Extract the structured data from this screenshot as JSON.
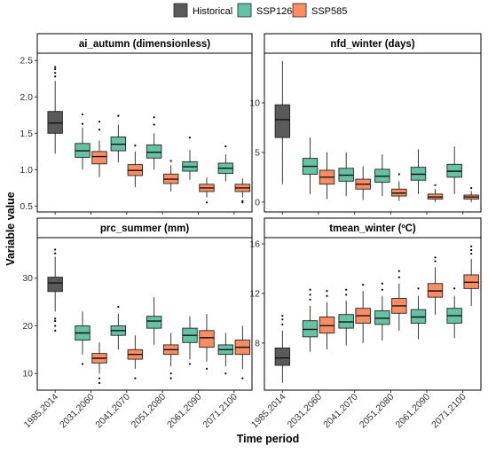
{
  "legend": {
    "items": [
      {
        "label": "Historical",
        "color": "#5a5a5a"
      },
      {
        "label": "SSP126",
        "color": "#66c2a5"
      },
      {
        "label": "SSP585",
        "color": "#fc8d62"
      }
    ]
  },
  "axes": {
    "xlabel": "Time period",
    "ylabel": "Variable value"
  },
  "chart_data": {
    "type": "boxplot",
    "layout": "2x2 facets",
    "x_categories": [
      "1985,2014",
      "2031,2060",
      "2041,2070",
      "2051,2080",
      "2061,2090",
      "2071,2100"
    ],
    "panels": [
      {
        "title": "ai_autumn (dimensionless)",
        "ylim": [
          0.42,
          2.6
        ],
        "yticks": [
          0.5,
          1.0,
          1.5,
          2.0,
          2.5
        ],
        "ytick_labels": [
          "0.5",
          "1.0",
          "1.5",
          "2.0",
          "2.5"
        ],
        "boxes": [
          {
            "period": "1985,2014",
            "scenario": "Historical",
            "min": 1.22,
            "q1": 1.5,
            "median": 1.64,
            "q3": 1.8,
            "max": 2.22,
            "outliers": [
              2.28,
              2.33,
              2.38,
              2.41
            ]
          },
          {
            "period": "2031,2060",
            "scenario": "SSP126",
            "min": 1.0,
            "q1": 1.17,
            "median": 1.26,
            "q3": 1.36,
            "max": 1.58,
            "outliers": [
              1.63,
              1.76
            ]
          },
          {
            "period": "2031,2060",
            "scenario": "SSP585",
            "min": 0.9,
            "q1": 1.08,
            "median": 1.18,
            "q3": 1.25,
            "max": 1.4,
            "outliers": [
              1.55,
              1.66
            ]
          },
          {
            "period": "2041,2070",
            "scenario": "SSP126",
            "min": 1.1,
            "q1": 1.26,
            "median": 1.35,
            "q3": 1.45,
            "max": 1.62,
            "outliers": [
              1.74
            ]
          },
          {
            "period": "2041,2070",
            "scenario": "SSP585",
            "min": 0.76,
            "q1": 0.92,
            "median": 0.99,
            "q3": 1.07,
            "max": 1.25,
            "outliers": [
              1.33
            ]
          },
          {
            "period": "2051,2080",
            "scenario": "SSP126",
            "min": 1.0,
            "q1": 1.16,
            "median": 1.24,
            "q3": 1.34,
            "max": 1.5,
            "outliers": [
              1.62,
              1.72
            ]
          },
          {
            "period": "2051,2080",
            "scenario": "SSP585",
            "min": 0.7,
            "q1": 0.81,
            "median": 0.87,
            "q3": 0.94,
            "max": 1.06,
            "outliers": [
              1.12
            ]
          },
          {
            "period": "2061,2090",
            "scenario": "SSP126",
            "min": 0.86,
            "q1": 0.98,
            "median": 1.04,
            "q3": 1.11,
            "max": 1.27,
            "outliers": [
              1.44
            ]
          },
          {
            "period": "2061,2090",
            "scenario": "SSP585",
            "min": 0.62,
            "q1": 0.7,
            "median": 0.75,
            "q3": 0.8,
            "max": 0.89,
            "outliers": [
              0.55
            ]
          },
          {
            "period": "2071,2100",
            "scenario": "SSP126",
            "min": 0.84,
            "q1": 0.95,
            "median": 1.02,
            "q3": 1.09,
            "max": 1.21,
            "outliers": [
              1.32
            ]
          },
          {
            "period": "2071,2100",
            "scenario": "SSP585",
            "min": 0.62,
            "q1": 0.7,
            "median": 0.75,
            "q3": 0.8,
            "max": 0.88,
            "outliers": [
              0.55,
              0.57
            ]
          }
        ]
      },
      {
        "title": "nfd_winter (days)",
        "ylim": [
          -1.0,
          15.0
        ],
        "yticks": [
          0,
          5,
          10
        ],
        "ytick_labels": [
          "0",
          "5",
          "10"
        ],
        "boxes": [
          {
            "period": "1985,2014",
            "scenario": "Historical",
            "min": 1.8,
            "q1": 6.5,
            "median": 8.3,
            "q3": 9.8,
            "max": 14.2,
            "outliers": []
          },
          {
            "period": "2031,2060",
            "scenario": "SSP126",
            "min": 0.8,
            "q1": 2.8,
            "median": 3.6,
            "q3": 4.4,
            "max": 6.5,
            "outliers": []
          },
          {
            "period": "2031,2060",
            "scenario": "SSP585",
            "min": 0.3,
            "q1": 1.8,
            "median": 2.5,
            "q3": 3.2,
            "max": 5.0,
            "outliers": []
          },
          {
            "period": "2041,2070",
            "scenario": "SSP126",
            "min": 0.6,
            "q1": 2.1,
            "median": 2.7,
            "q3": 3.4,
            "max": 5.0,
            "outliers": []
          },
          {
            "period": "2041,2070",
            "scenario": "SSP585",
            "min": 0.2,
            "q1": 1.3,
            "median": 1.8,
            "q3": 2.3,
            "max": 3.6,
            "outliers": []
          },
          {
            "period": "2051,2080",
            "scenario": "SSP126",
            "min": 0.6,
            "q1": 2.0,
            "median": 2.6,
            "q3": 3.3,
            "max": 4.8,
            "outliers": []
          },
          {
            "period": "2051,2080",
            "scenario": "SSP585",
            "min": 0.1,
            "q1": 0.6,
            "median": 0.9,
            "q3": 1.3,
            "max": 2.1,
            "outliers": [
              2.8
            ]
          },
          {
            "period": "2061,2090",
            "scenario": "SSP126",
            "min": 0.8,
            "q1": 2.2,
            "median": 2.8,
            "q3": 3.5,
            "max": 5.3,
            "outliers": []
          },
          {
            "period": "2061,2090",
            "scenario": "SSP585",
            "min": 0.0,
            "q1": 0.3,
            "median": 0.5,
            "q3": 0.8,
            "max": 1.3,
            "outliers": [
              1.7
            ]
          },
          {
            "period": "2071,2100",
            "scenario": "SSP126",
            "min": 0.8,
            "q1": 2.5,
            "median": 3.1,
            "q3": 3.8,
            "max": 5.6,
            "outliers": []
          },
          {
            "period": "2071,2100",
            "scenario": "SSP585",
            "min": 0.0,
            "q1": 0.3,
            "median": 0.5,
            "q3": 0.7,
            "max": 1.1,
            "outliers": [
              1.4
            ]
          }
        ]
      },
      {
        "title": "prc_summer (mm)",
        "ylim": [
          6.5,
          38.5
        ],
        "yticks": [
          10,
          20,
          30
        ],
        "ytick_labels": [
          "10",
          "20",
          "30"
        ],
        "boxes": [
          {
            "period": "1985,2014",
            "scenario": "Historical",
            "min": 23.0,
            "q1": 27.2,
            "median": 29.0,
            "q3": 30.2,
            "max": 34.5,
            "outliers": [
              19.0,
              20.0,
              21.0,
              21.5,
              35.2,
              36.0
            ]
          },
          {
            "period": "2031,2060",
            "scenario": "SSP126",
            "min": 14.0,
            "q1": 17.0,
            "median": 18.5,
            "q3": 20.0,
            "max": 23.0,
            "outliers": [
              12.0
            ]
          },
          {
            "period": "2031,2060",
            "scenario": "SSP585",
            "min": 10.0,
            "q1": 12.2,
            "median": 13.2,
            "q3": 14.2,
            "max": 16.5,
            "outliers": [
              8.0,
              9.0
            ]
          },
          {
            "period": "2041,2070",
            "scenario": "SSP126",
            "min": 15.0,
            "q1": 18.0,
            "median": 19.0,
            "q3": 20.0,
            "max": 22.5,
            "outliers": [
              24.0
            ]
          },
          {
            "period": "2041,2070",
            "scenario": "SSP585",
            "min": 11.0,
            "q1": 13.0,
            "median": 14.0,
            "q3": 15.0,
            "max": 18.0,
            "outliers": [
              9.0
            ]
          },
          {
            "period": "2051,2080",
            "scenario": "SSP126",
            "min": 16.0,
            "q1": 19.5,
            "median": 21.0,
            "q3": 22.0,
            "max": 26.0,
            "outliers": []
          },
          {
            "period": "2051,2080",
            "scenario": "SSP585",
            "min": 11.5,
            "q1": 14.0,
            "median": 15.0,
            "q3": 16.0,
            "max": 18.5,
            "outliers": [
              9.0,
              10.0
            ]
          },
          {
            "period": "2061,2090",
            "scenario": "SSP126",
            "min": 13.0,
            "q1": 16.5,
            "median": 18.0,
            "q3": 19.5,
            "max": 22.0,
            "outliers": [
              12.0
            ]
          },
          {
            "period": "2061,2090",
            "scenario": "SSP585",
            "min": 12.5,
            "q1": 15.5,
            "median": 17.5,
            "q3": 19.0,
            "max": 22.5,
            "outliers": [
              11.0
            ]
          },
          {
            "period": "2071,2100",
            "scenario": "SSP126",
            "min": 11.5,
            "q1": 14.0,
            "median": 15.0,
            "q3": 16.0,
            "max": 18.5,
            "outliers": [
              10.0
            ]
          },
          {
            "period": "2071,2100",
            "scenario": "SSP585",
            "min": 11.0,
            "q1": 14.0,
            "median": 15.5,
            "q3": 17.0,
            "max": 20.0,
            "outliers": [
              9.0
            ]
          }
        ]
      },
      {
        "title": "tmean_winter (ºC)",
        "ylim": [
          4.2,
          16.5
        ],
        "yticks": [
          8,
          12,
          16
        ],
        "ytick_labels": [
          "8",
          "12",
          "16"
        ],
        "boxes": [
          {
            "period": "1985,2014",
            "scenario": "Historical",
            "min": 4.8,
            "q1": 6.2,
            "median": 6.8,
            "q3": 7.6,
            "max": 9.0,
            "outliers": [
              9.5,
              9.9,
              10.2
            ]
          },
          {
            "period": "2031,2060",
            "scenario": "SSP126",
            "min": 7.3,
            "q1": 8.5,
            "median": 9.1,
            "q3": 9.8,
            "max": 11.0,
            "outliers": [
              11.5,
              11.9,
              12.3
            ]
          },
          {
            "period": "2031,2060",
            "scenario": "SSP585",
            "min": 7.5,
            "q1": 8.8,
            "median": 9.4,
            "q3": 10.1,
            "max": 11.3,
            "outliers": [
              11.8,
              12.2
            ]
          },
          {
            "period": "2041,2070",
            "scenario": "SSP126",
            "min": 7.8,
            "q1": 9.2,
            "median": 9.7,
            "q3": 10.3,
            "max": 11.4,
            "outliers": [
              11.9,
              12.3
            ]
          },
          {
            "period": "2041,2070",
            "scenario": "SSP585",
            "min": 8.0,
            "q1": 9.6,
            "median": 10.2,
            "q3": 10.8,
            "max": 12.2,
            "outliers": [
              12.7
            ]
          },
          {
            "period": "2051,2080",
            "scenario": "SSP126",
            "min": 8.2,
            "q1": 9.5,
            "median": 10.0,
            "q3": 10.6,
            "max": 11.8,
            "outliers": [
              12.3,
              12.8
            ]
          },
          {
            "period": "2051,2080",
            "scenario": "SSP585",
            "min": 9.0,
            "q1": 10.4,
            "median": 11.0,
            "q3": 11.6,
            "max": 12.8,
            "outliers": [
              13.3,
              13.8
            ]
          },
          {
            "period": "2061,2090",
            "scenario": "SSP126",
            "min": 8.3,
            "q1": 9.6,
            "median": 10.1,
            "q3": 10.7,
            "max": 11.8,
            "outliers": [
              12.4
            ]
          },
          {
            "period": "2061,2090",
            "scenario": "SSP585",
            "min": 10.3,
            "q1": 11.7,
            "median": 12.2,
            "q3": 12.8,
            "max": 14.1,
            "outliers": [
              14.6,
              14.9
            ]
          },
          {
            "period": "2071,2100",
            "scenario": "SSP126",
            "min": 8.4,
            "q1": 9.6,
            "median": 10.2,
            "q3": 10.8,
            "max": 11.8,
            "outliers": [
              12.4
            ]
          },
          {
            "period": "2071,2100",
            "scenario": "SSP585",
            "min": 11.0,
            "q1": 12.4,
            "median": 12.9,
            "q3": 13.5,
            "max": 14.8,
            "outliers": [
              15.2,
              15.5,
              15.8
            ]
          }
        ]
      }
    ]
  }
}
